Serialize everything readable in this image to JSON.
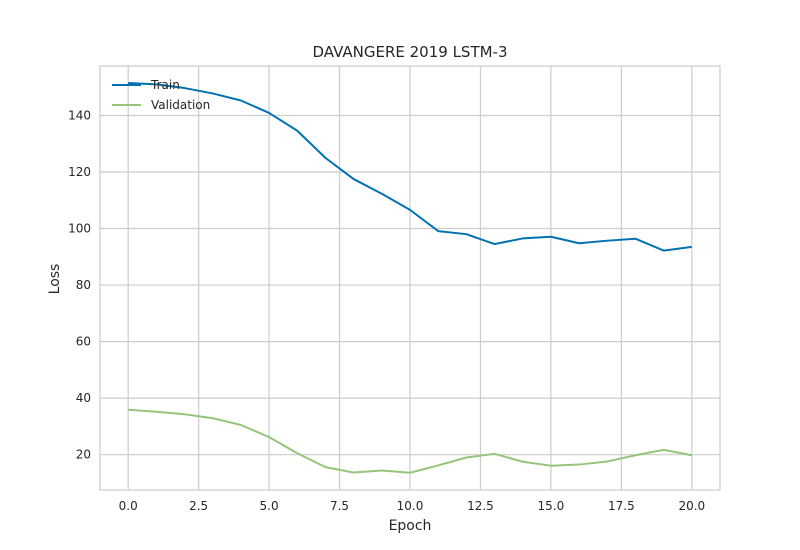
{
  "chart_data": {
    "type": "line",
    "title": "DAVANGERE 2019 LSTM-3",
    "xlabel": "Epoch",
    "ylabel": "Loss",
    "xlim": [
      -1.0,
      21.0
    ],
    "ylim": [
      7.5,
      157.5
    ],
    "xticks": [
      "0.0",
      "2.5",
      "5.0",
      "7.5",
      "10.0",
      "12.5",
      "15.0",
      "17.5",
      "20.0"
    ],
    "xtick_values": [
      0,
      2.5,
      5,
      7.5,
      10,
      12.5,
      15,
      17.5,
      20
    ],
    "yticks": [
      "20",
      "40",
      "60",
      "80",
      "100",
      "120",
      "140"
    ],
    "ytick_values": [
      20,
      40,
      60,
      80,
      100,
      120,
      140
    ],
    "grid": true,
    "legend_position": "top-left",
    "x": [
      0,
      1,
      2,
      3,
      4,
      5,
      6,
      7,
      8,
      9,
      10,
      11,
      12,
      13,
      14,
      15,
      16,
      17,
      18,
      19,
      20
    ],
    "series": [
      {
        "name": "Train",
        "color": "#0072b2",
        "values": [
          151.5,
          151.0,
          149.7,
          147.8,
          145.3,
          140.9,
          134.6,
          125.0,
          117.5,
          112.3,
          106.6,
          99.1,
          98.0,
          94.5,
          96.5,
          97.1,
          94.8,
          95.7,
          96.4,
          92.2,
          93.5
        ]
      },
      {
        "name": "Validation",
        "color": "#96c47a",
        "values": [
          35.9,
          35.2,
          34.3,
          32.9,
          30.5,
          26.2,
          20.5,
          15.6,
          13.7,
          14.4,
          13.6,
          16.2,
          19.0,
          20.3,
          17.5,
          16.1,
          16.5,
          17.6,
          19.8,
          21.7,
          19.8
        ]
      }
    ]
  }
}
